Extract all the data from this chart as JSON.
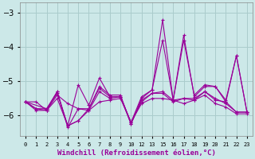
{
  "xlabel": "Windchill (Refroidissement éolien,°C)",
  "background_color": "#cce8e8",
  "grid_color": "#aacccc",
  "line_color": "#990099",
  "xtick_labels": [
    "0",
    "1",
    "2",
    "3",
    "4",
    "5",
    "6",
    "7",
    "8",
    "9",
    "10",
    "12",
    "13",
    "15",
    "16",
    "17",
    "18",
    "19",
    "20",
    "21",
    "22",
    "23"
  ],
  "ylim": [
    -6.6,
    -2.7
  ],
  "yticks": [
    -6,
    -5,
    -4,
    -3
  ],
  "lines": [
    {
      "x": [
        0,
        1,
        2,
        3,
        4,
        5,
        6,
        7,
        8,
        9,
        10,
        11,
        12,
        13,
        14,
        15,
        16,
        17,
        18,
        19,
        20,
        21
      ],
      "y": [
        -5.6,
        -5.6,
        -5.85,
        -5.5,
        -6.3,
        -6.15,
        -5.85,
        -5.6,
        -5.55,
        -5.5,
        -6.2,
        -5.65,
        -5.5,
        -5.5,
        -5.55,
        -5.65,
        -5.55,
        -5.4,
        -5.65,
        -5.75,
        -5.95,
        -5.95
      ]
    },
    {
      "x": [
        0,
        1,
        2,
        3,
        4,
        5,
        6,
        7,
        8,
        9,
        10,
        11,
        12,
        13,
        14,
        15,
        16,
        17,
        18,
        19,
        20,
        21
      ],
      "y": [
        -5.6,
        -5.85,
        -5.85,
        -5.3,
        -6.35,
        -5.8,
        -5.8,
        -5.2,
        -5.45,
        -5.45,
        -6.25,
        -5.55,
        -5.35,
        -5.35,
        -5.6,
        -5.5,
        -5.55,
        -5.3,
        -5.5,
        -5.65,
        -5.9,
        -5.9
      ]
    },
    {
      "x": [
        0,
        1,
        2,
        3,
        4,
        5,
        6,
        7,
        8,
        9,
        10,
        11,
        12,
        13,
        14,
        15,
        16,
        17,
        18,
        19,
        20,
        21
      ],
      "y": [
        -5.6,
        -5.8,
        -5.85,
        -5.4,
        -5.65,
        -5.8,
        -5.85,
        -5.3,
        -5.5,
        -5.45,
        -6.2,
        -5.6,
        -5.35,
        -5.3,
        -5.55,
        -5.5,
        -5.5,
        -5.3,
        -5.55,
        -5.6,
        -5.9,
        -5.9
      ]
    },
    {
      "x": [
        0,
        2,
        3,
        4,
        5,
        6,
        7,
        8,
        9,
        10,
        11,
        12,
        13,
        14,
        15,
        16,
        17,
        18,
        19,
        20,
        21
      ],
      "y": [
        -5.6,
        -5.8,
        -5.35,
        -6.3,
        -5.1,
        -5.7,
        -4.9,
        -5.45,
        -5.45,
        -6.2,
        -5.45,
        -5.25,
        -3.2,
        -5.55,
        -3.65,
        -5.45,
        -5.15,
        -5.15,
        -5.6,
        -4.25,
        -5.9
      ]
    },
    {
      "x": [
        0,
        1,
        2,
        3,
        4,
        5,
        6,
        7,
        8,
        9,
        10,
        11,
        12,
        13,
        14,
        15,
        16,
        17,
        18,
        19,
        20,
        21
      ],
      "y": [
        -5.6,
        -5.8,
        -5.8,
        -5.3,
        -6.3,
        -6.15,
        -5.8,
        -5.15,
        -5.4,
        -5.4,
        -6.25,
        -5.5,
        -5.25,
        -3.8,
        -5.55,
        -3.8,
        -5.4,
        -5.1,
        -5.15,
        -5.55,
        -4.25,
        -5.9
      ]
    }
  ]
}
